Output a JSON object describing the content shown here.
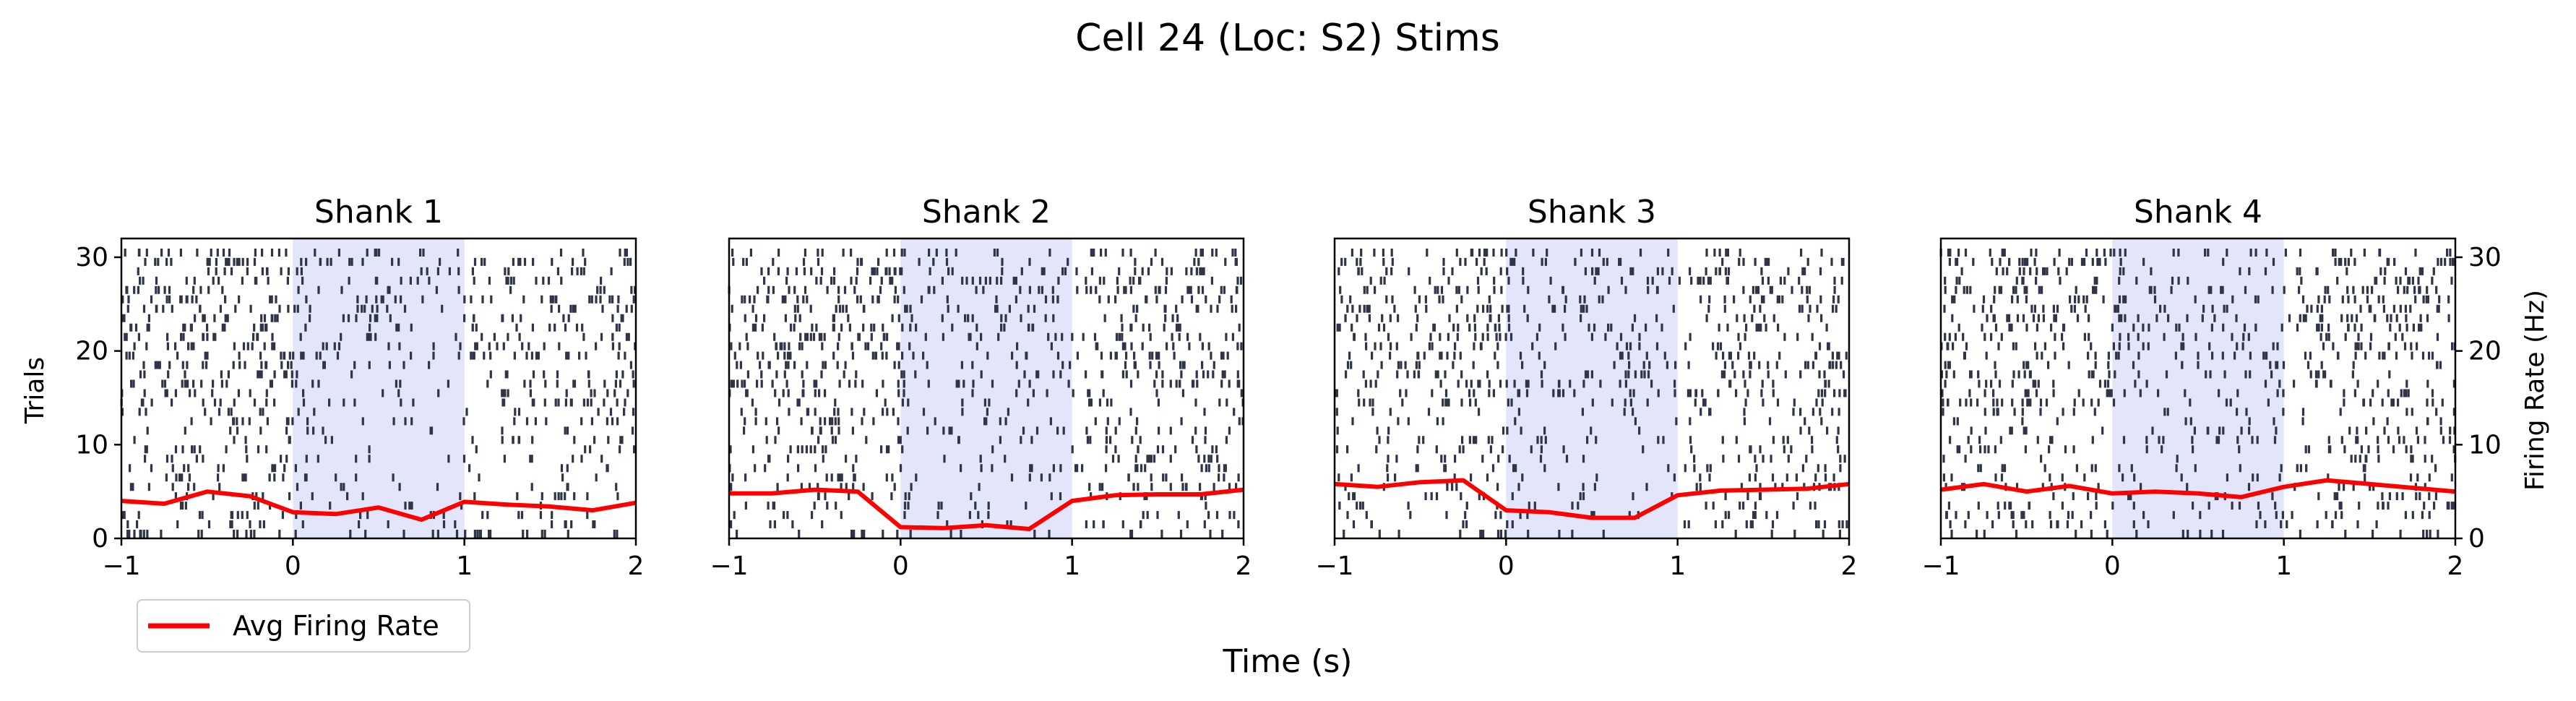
{
  "figure": {
    "title": "Cell 24 (Loc: S2) Stims",
    "xlabel": "Time (s)",
    "ylabel_left": "Trials",
    "ylabel_right": "Firing Rate (Hz)",
    "legend_label": "Avg Firing Rate",
    "legend_position": "below-left"
  },
  "colors": {
    "raster": "#2f3447",
    "rate": "#ff0000",
    "stim_shade": "#e3e5fb",
    "axes": "#000000"
  },
  "chart_data": [
    {
      "type": "raster+line",
      "title": "Shank 1",
      "xlim": [
        -1,
        2
      ],
      "ylim": [
        0,
        32
      ],
      "xticks": [
        "−1",
        "0",
        "1",
        "2"
      ],
      "yticks": [
        "0",
        "10",
        "20",
        "30"
      ],
      "stim_window": [
        0,
        1
      ],
      "n_trials": 31,
      "series": [
        {
          "name": "Avg Firing Rate",
          "x": [
            -1.0,
            -0.75,
            -0.5,
            -0.25,
            0.0,
            0.25,
            0.5,
            0.75,
            1.0,
            1.25,
            1.5,
            1.75,
            2.0
          ],
          "values": [
            4.0,
            3.7,
            5.0,
            4.5,
            2.8,
            2.6,
            3.3,
            2.0,
            3.9,
            3.6,
            3.4,
            3.0,
            3.8
          ]
        }
      ]
    },
    {
      "type": "raster+line",
      "title": "Shank 2",
      "xlim": [
        -1,
        2
      ],
      "ylim": [
        0,
        32
      ],
      "xticks": [
        "−1",
        "0",
        "1",
        "2"
      ],
      "stim_window": [
        0,
        1
      ],
      "n_trials": 31,
      "series": [
        {
          "name": "Avg Firing Rate",
          "x": [
            -1.0,
            -0.75,
            -0.5,
            -0.25,
            0.0,
            0.25,
            0.5,
            0.75,
            1.0,
            1.25,
            1.5,
            1.75,
            2.0
          ],
          "values": [
            4.8,
            4.8,
            5.2,
            5.0,
            1.2,
            1.1,
            1.4,
            1.0,
            4.0,
            4.6,
            4.7,
            4.7,
            5.2
          ]
        }
      ]
    },
    {
      "type": "raster+line",
      "title": "Shank 3",
      "xlim": [
        -1,
        2
      ],
      "ylim": [
        0,
        32
      ],
      "xticks": [
        "−1",
        "0",
        "1",
        "2"
      ],
      "stim_window": [
        0,
        1
      ],
      "n_trials": 31,
      "series": [
        {
          "name": "Avg Firing Rate",
          "x": [
            -1.0,
            -0.75,
            -0.5,
            -0.25,
            0.0,
            0.25,
            0.5,
            0.75,
            1.0,
            1.25,
            1.5,
            1.75,
            2.0
          ],
          "values": [
            5.8,
            5.5,
            6.0,
            6.2,
            3.0,
            2.8,
            2.2,
            2.2,
            4.6,
            5.1,
            5.2,
            5.3,
            5.8
          ]
        }
      ]
    },
    {
      "type": "raster+line",
      "title": "Shank 4",
      "xlim": [
        -1,
        2
      ],
      "ylim": [
        0,
        32
      ],
      "xticks": [
        "−1",
        "0",
        "1",
        "2"
      ],
      "yticks_right": [
        "0",
        "10",
        "20",
        "30"
      ],
      "stim_window": [
        0,
        1
      ],
      "n_trials": 31,
      "series": [
        {
          "name": "Avg Firing Rate",
          "x": [
            -1.0,
            -0.75,
            -0.5,
            -0.25,
            0.0,
            0.25,
            0.5,
            0.75,
            1.0,
            1.25,
            1.5,
            1.75,
            2.0
          ],
          "values": [
            5.2,
            5.8,
            5.0,
            5.6,
            4.8,
            5.0,
            4.8,
            4.4,
            5.5,
            6.2,
            5.8,
            5.4,
            5.0
          ]
        }
      ]
    }
  ]
}
